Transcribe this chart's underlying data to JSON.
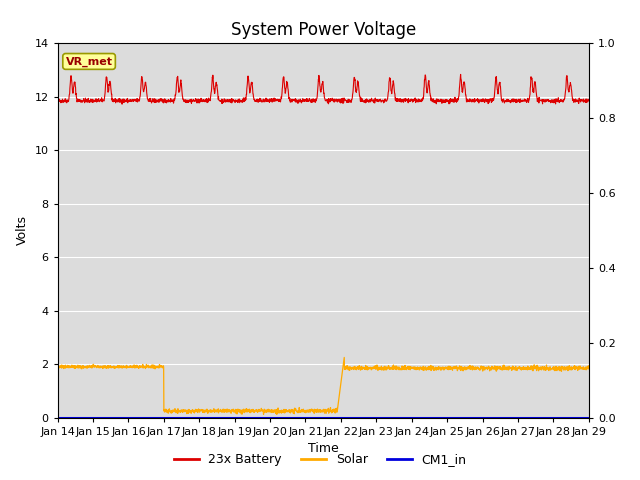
{
  "title": "System Power Voltage",
  "xlabel": "Time",
  "ylabel": "Volts",
  "xlim": [
    0,
    15
  ],
  "ylim_left": [
    0,
    14
  ],
  "ylim_right": [
    0.0,
    1.0
  ],
  "x_tick_labels": [
    "Jan 14",
    "Jan 15",
    "Jan 16",
    "Jan 17",
    "Jan 18",
    "Jan 19",
    "Jan 20",
    "Jan 21",
    "Jan 22",
    "Jan 23",
    "Jan 24",
    "Jan 25",
    "Jan 26",
    "Jan 27",
    "Jan 28",
    "Jan 29"
  ],
  "yticks_left": [
    0,
    2,
    4,
    6,
    8,
    10,
    12,
    14
  ],
  "yticks_right": [
    0.0,
    0.2,
    0.4,
    0.6,
    0.8,
    1.0
  ],
  "background_color": "#dcdcdc",
  "title_fontsize": 12,
  "axis_label_fontsize": 9,
  "tick_fontsize": 8,
  "legend_fontsize": 9,
  "annotation_text": "VR_met",
  "annotation_bg": "#ffff99",
  "annotation_edge": "#999900",
  "annotation_textcolor": "#990000",
  "line_colors": {
    "battery": "#dd0000",
    "solar": "#ffaa00",
    "cm1": "#0000dd"
  },
  "legend_labels": [
    "23x Battery",
    "Solar",
    "CM1_in"
  ],
  "grid_color": "#ffffff",
  "outer_bg": "#ffffff"
}
